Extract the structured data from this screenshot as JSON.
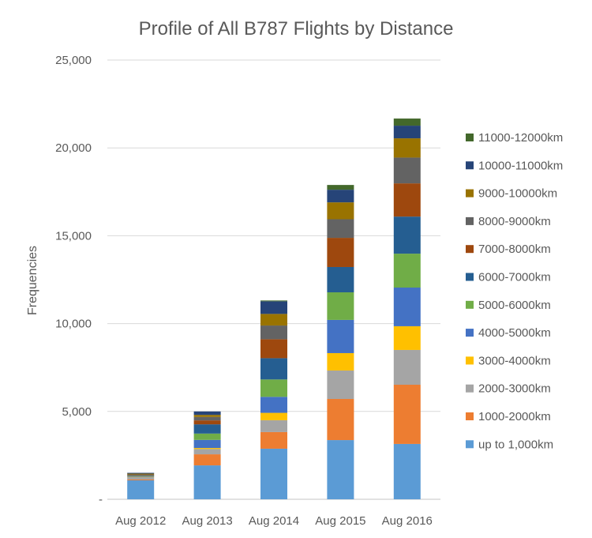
{
  "chart_data": {
    "type": "bar",
    "stacked": true,
    "title": "Profile of All B787 Flights by Distance",
    "xlabel": "",
    "ylabel": "Frequencies",
    "ylim": [
      0,
      25000
    ],
    "yticks": [
      0,
      5000,
      10000,
      15000,
      20000,
      25000
    ],
    "ytick_labels": [
      "-",
      "5,000",
      "10,000",
      "15,000",
      "20,000",
      "25,000"
    ],
    "grid": true,
    "legend_position": "right",
    "categories": [
      "Aug 2012",
      "Aug 2013",
      "Aug 2014",
      "Aug 2015",
      "Aug 2016"
    ],
    "series": [
      {
        "name": "up to 1,000km",
        "color": "#5b9bd5",
        "values": [
          1080,
          1930,
          2880,
          3370,
          3150
        ]
      },
      {
        "name": "1000-2000km",
        "color": "#ed7d31",
        "values": [
          45,
          630,
          945,
          2340,
          3370
        ]
      },
      {
        "name": "2000-3000km",
        "color": "#a5a5a5",
        "values": [
          135,
          300,
          675,
          1620,
          1980
        ]
      },
      {
        "name": "3000-4000km",
        "color": "#ffc000",
        "values": [
          20,
          60,
          420,
          990,
          1350
        ]
      },
      {
        "name": "4000-5000km",
        "color": "#4472c4",
        "values": [
          45,
          460,
          910,
          1890,
          2200
        ]
      },
      {
        "name": "5000-6000km",
        "color": "#70ad47",
        "values": [
          20,
          360,
          990,
          1570,
          1930
        ]
      },
      {
        "name": "6000-7000km",
        "color": "#255e91",
        "values": [
          20,
          525,
          1210,
          1440,
          2110
        ]
      },
      {
        "name": "7000-8000km",
        "color": "#9e480e",
        "values": [
          30,
          225,
          1080,
          1660,
          1890
        ]
      },
      {
        "name": "8000-9000km",
        "color": "#636363",
        "values": [
          20,
          195,
          780,
          1060,
          1470
        ]
      },
      {
        "name": "9000-10000km",
        "color": "#997300",
        "values": [
          45,
          120,
          660,
          960,
          1095
        ]
      },
      {
        "name": "10000-11000km",
        "color": "#264478",
        "values": [
          45,
          195,
          720,
          720,
          720
        ]
      },
      {
        "name": "11000-12000km",
        "color": "#43682b",
        "values": [
          0,
          0,
          45,
          270,
          405
        ]
      }
    ]
  }
}
